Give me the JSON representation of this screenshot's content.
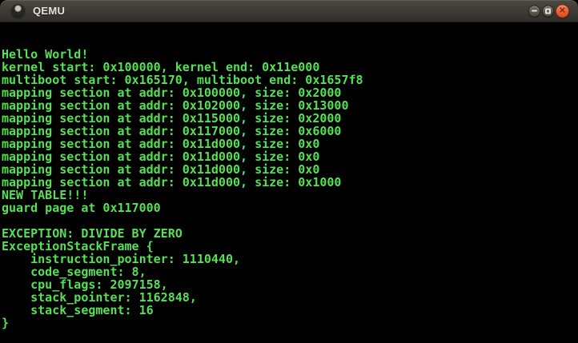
{
  "window": {
    "title": "QEMU",
    "controls": {
      "minimize": "minimize",
      "maximize": "maximize",
      "close": "close"
    }
  },
  "colors": {
    "terminal_text_green": "#55e055",
    "terminal_background": "#000000",
    "titlebar_top": "#4b4840",
    "titlebar_bottom": "#302e29",
    "close_button_orange": "#e85a2e",
    "control_button_gray": "#5c5850",
    "title_text": "#e8e4dc"
  },
  "terminal": {
    "lines": [
      "",
      "",
      "Hello World!",
      "kernel start: 0x100000, kernel end: 0x11e000",
      "multiboot start: 0x165170, multiboot end: 0x1657f8",
      "mapping section at addr: 0x100000, size: 0x2000",
      "mapping section at addr: 0x102000, size: 0x13000",
      "mapping section at addr: 0x115000, size: 0x2000",
      "mapping section at addr: 0x117000, size: 0x6000",
      "mapping section at addr: 0x11d000, size: 0x0",
      "mapping section at addr: 0x11d000, size: 0x0",
      "mapping section at addr: 0x11d000, size: 0x0",
      "mapping section at addr: 0x11d000, size: 0x1000",
      "NEW TABLE!!!",
      "guard page at 0x117000",
      "",
      "EXCEPTION: DIVIDE BY ZERO",
      "ExceptionStackFrame {",
      "    instruction_pointer: 1110440,",
      "    code_segment: 8,",
      "    cpu_flags: 2097158,",
      "    stack_pointer: 1162848,",
      "    stack_segment: 16",
      "}",
      ""
    ]
  }
}
